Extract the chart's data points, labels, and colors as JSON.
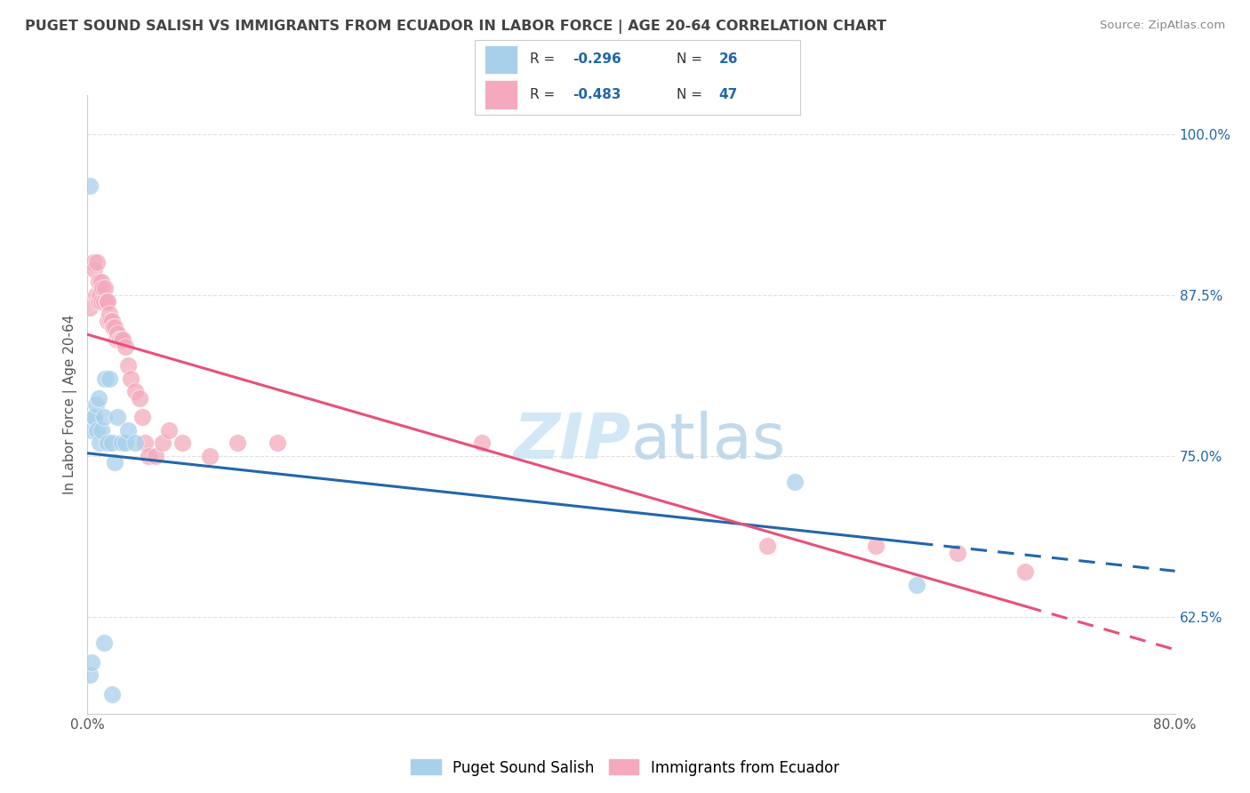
{
  "title": "PUGET SOUND SALISH VS IMMIGRANTS FROM ECUADOR IN LABOR FORCE | AGE 20-64 CORRELATION CHART",
  "source": "Source: ZipAtlas.com",
  "ylabel": "In Labor Force | Age 20-64",
  "xlim": [
    0.0,
    0.8
  ],
  "ylim": [
    0.55,
    1.03
  ],
  "xticks": [
    0.0,
    0.1,
    0.2,
    0.3,
    0.4,
    0.5,
    0.6,
    0.7,
    0.8
  ],
  "xticklabels": [
    "0.0%",
    "",
    "",
    "",
    "",
    "",
    "",
    "",
    "80.0%"
  ],
  "yticks": [
    0.625,
    0.75,
    0.875,
    1.0
  ],
  "yticklabels": [
    "62.5%",
    "75.0%",
    "87.5%",
    "100.0%"
  ],
  "blue_color": "#a8d0eb",
  "pink_color": "#f4aabc",
  "blue_line_color": "#2166ac",
  "pink_line_color": "#e8507a",
  "blue_scatter_x": [
    0.002,
    0.003,
    0.004,
    0.005,
    0.006,
    0.007,
    0.008,
    0.009,
    0.01,
    0.012,
    0.013,
    0.015,
    0.016,
    0.018,
    0.02,
    0.022,
    0.025,
    0.028,
    0.03,
    0.035,
    0.002,
    0.52,
    0.61,
    0.003,
    0.012,
    0.018
  ],
  "blue_scatter_y": [
    0.96,
    0.77,
    0.78,
    0.78,
    0.79,
    0.77,
    0.795,
    0.76,
    0.77,
    0.78,
    0.81,
    0.76,
    0.81,
    0.76,
    0.745,
    0.78,
    0.76,
    0.76,
    0.77,
    0.76,
    0.58,
    0.73,
    0.65,
    0.59,
    0.605,
    0.565
  ],
  "pink_scatter_x": [
    0.002,
    0.004,
    0.005,
    0.006,
    0.007,
    0.008,
    0.008,
    0.009,
    0.01,
    0.01,
    0.011,
    0.012,
    0.013,
    0.014,
    0.015,
    0.015,
    0.016,
    0.017,
    0.018,
    0.019,
    0.02,
    0.021,
    0.022,
    0.023,
    0.024,
    0.025,
    0.026,
    0.028,
    0.03,
    0.032,
    0.035,
    0.038,
    0.04,
    0.042,
    0.045,
    0.05,
    0.055,
    0.06,
    0.07,
    0.09,
    0.11,
    0.14,
    0.29,
    0.5,
    0.58,
    0.64,
    0.69
  ],
  "pink_scatter_y": [
    0.865,
    0.9,
    0.895,
    0.875,
    0.9,
    0.885,
    0.87,
    0.875,
    0.87,
    0.885,
    0.88,
    0.87,
    0.88,
    0.87,
    0.87,
    0.855,
    0.86,
    0.855,
    0.855,
    0.85,
    0.85,
    0.84,
    0.845,
    0.84,
    0.84,
    0.84,
    0.84,
    0.835,
    0.82,
    0.81,
    0.8,
    0.795,
    0.78,
    0.76,
    0.75,
    0.75,
    0.76,
    0.77,
    0.76,
    0.75,
    0.76,
    0.76,
    0.76,
    0.68,
    0.68,
    0.675,
    0.66
  ],
  "watermark_zip": "ZIP",
  "watermark_atlas": "atlas",
  "legend_blue_label": "Puget Sound Salish",
  "legend_pink_label": "Immigrants from Ecuador",
  "background_color": "#ffffff",
  "grid_color": "#e0e0e0"
}
